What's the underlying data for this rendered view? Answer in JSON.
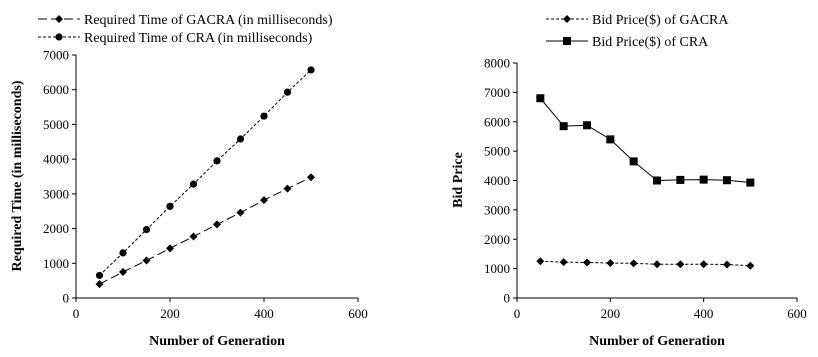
{
  "chart_data": [
    {
      "type": "line",
      "title": "",
      "xlabel": "Number of Generation",
      "ylabel": "Required Time (in milliseconds)",
      "xlim": [
        0,
        600
      ],
      "ylim": [
        0,
        7000
      ],
      "xticks": [
        0,
        200,
        400,
        600
      ],
      "yticks": [
        0,
        1000,
        2000,
        3000,
        4000,
        5000,
        6000,
        7000
      ],
      "grid": false,
      "legend_position": "top-left",
      "series": [
        {
          "name": "Required Time of GACRA (in milliseconds)",
          "marker": "diamond",
          "line": "long-dash",
          "x": [
            50,
            100,
            150,
            200,
            250,
            300,
            350,
            400,
            450,
            500
          ],
          "y": [
            400,
            750,
            1080,
            1430,
            1770,
            2120,
            2460,
            2820,
            3150,
            3480
          ]
        },
        {
          "name": "Required Time of CRA (in milliseconds)",
          "marker": "circle",
          "line": "short-dash",
          "x": [
            50,
            100,
            150,
            200,
            250,
            300,
            350,
            400,
            450,
            500
          ],
          "y": [
            650,
            1300,
            1970,
            2640,
            3280,
            3950,
            4580,
            5240,
            5930,
            6570
          ]
        }
      ]
    },
    {
      "type": "line",
      "title": "",
      "xlabel": "Number of Generation",
      "ylabel": "Bid Price",
      "xlim": [
        0,
        600
      ],
      "ylim": [
        0,
        8000
      ],
      "xticks": [
        0,
        200,
        400,
        600
      ],
      "yticks": [
        0,
        1000,
        2000,
        3000,
        4000,
        5000,
        6000,
        7000,
        8000
      ],
      "grid": false,
      "legend_position": "top-left",
      "series": [
        {
          "name": "Bid Price($) of GACRA",
          "marker": "diamond",
          "line": "short-dash",
          "x": [
            50,
            100,
            150,
            200,
            250,
            300,
            350,
            400,
            450,
            500
          ],
          "y": [
            1250,
            1220,
            1210,
            1190,
            1180,
            1150,
            1150,
            1150,
            1140,
            1100
          ]
        },
        {
          "name": "Bid Price($) of CRA",
          "marker": "square",
          "line": "solid",
          "x": [
            50,
            100,
            150,
            200,
            250,
            300,
            350,
            400,
            450,
            500
          ],
          "y": [
            6800,
            5850,
            5880,
            5400,
            4650,
            4000,
            4020,
            4030,
            4010,
            3930
          ]
        }
      ]
    }
  ]
}
